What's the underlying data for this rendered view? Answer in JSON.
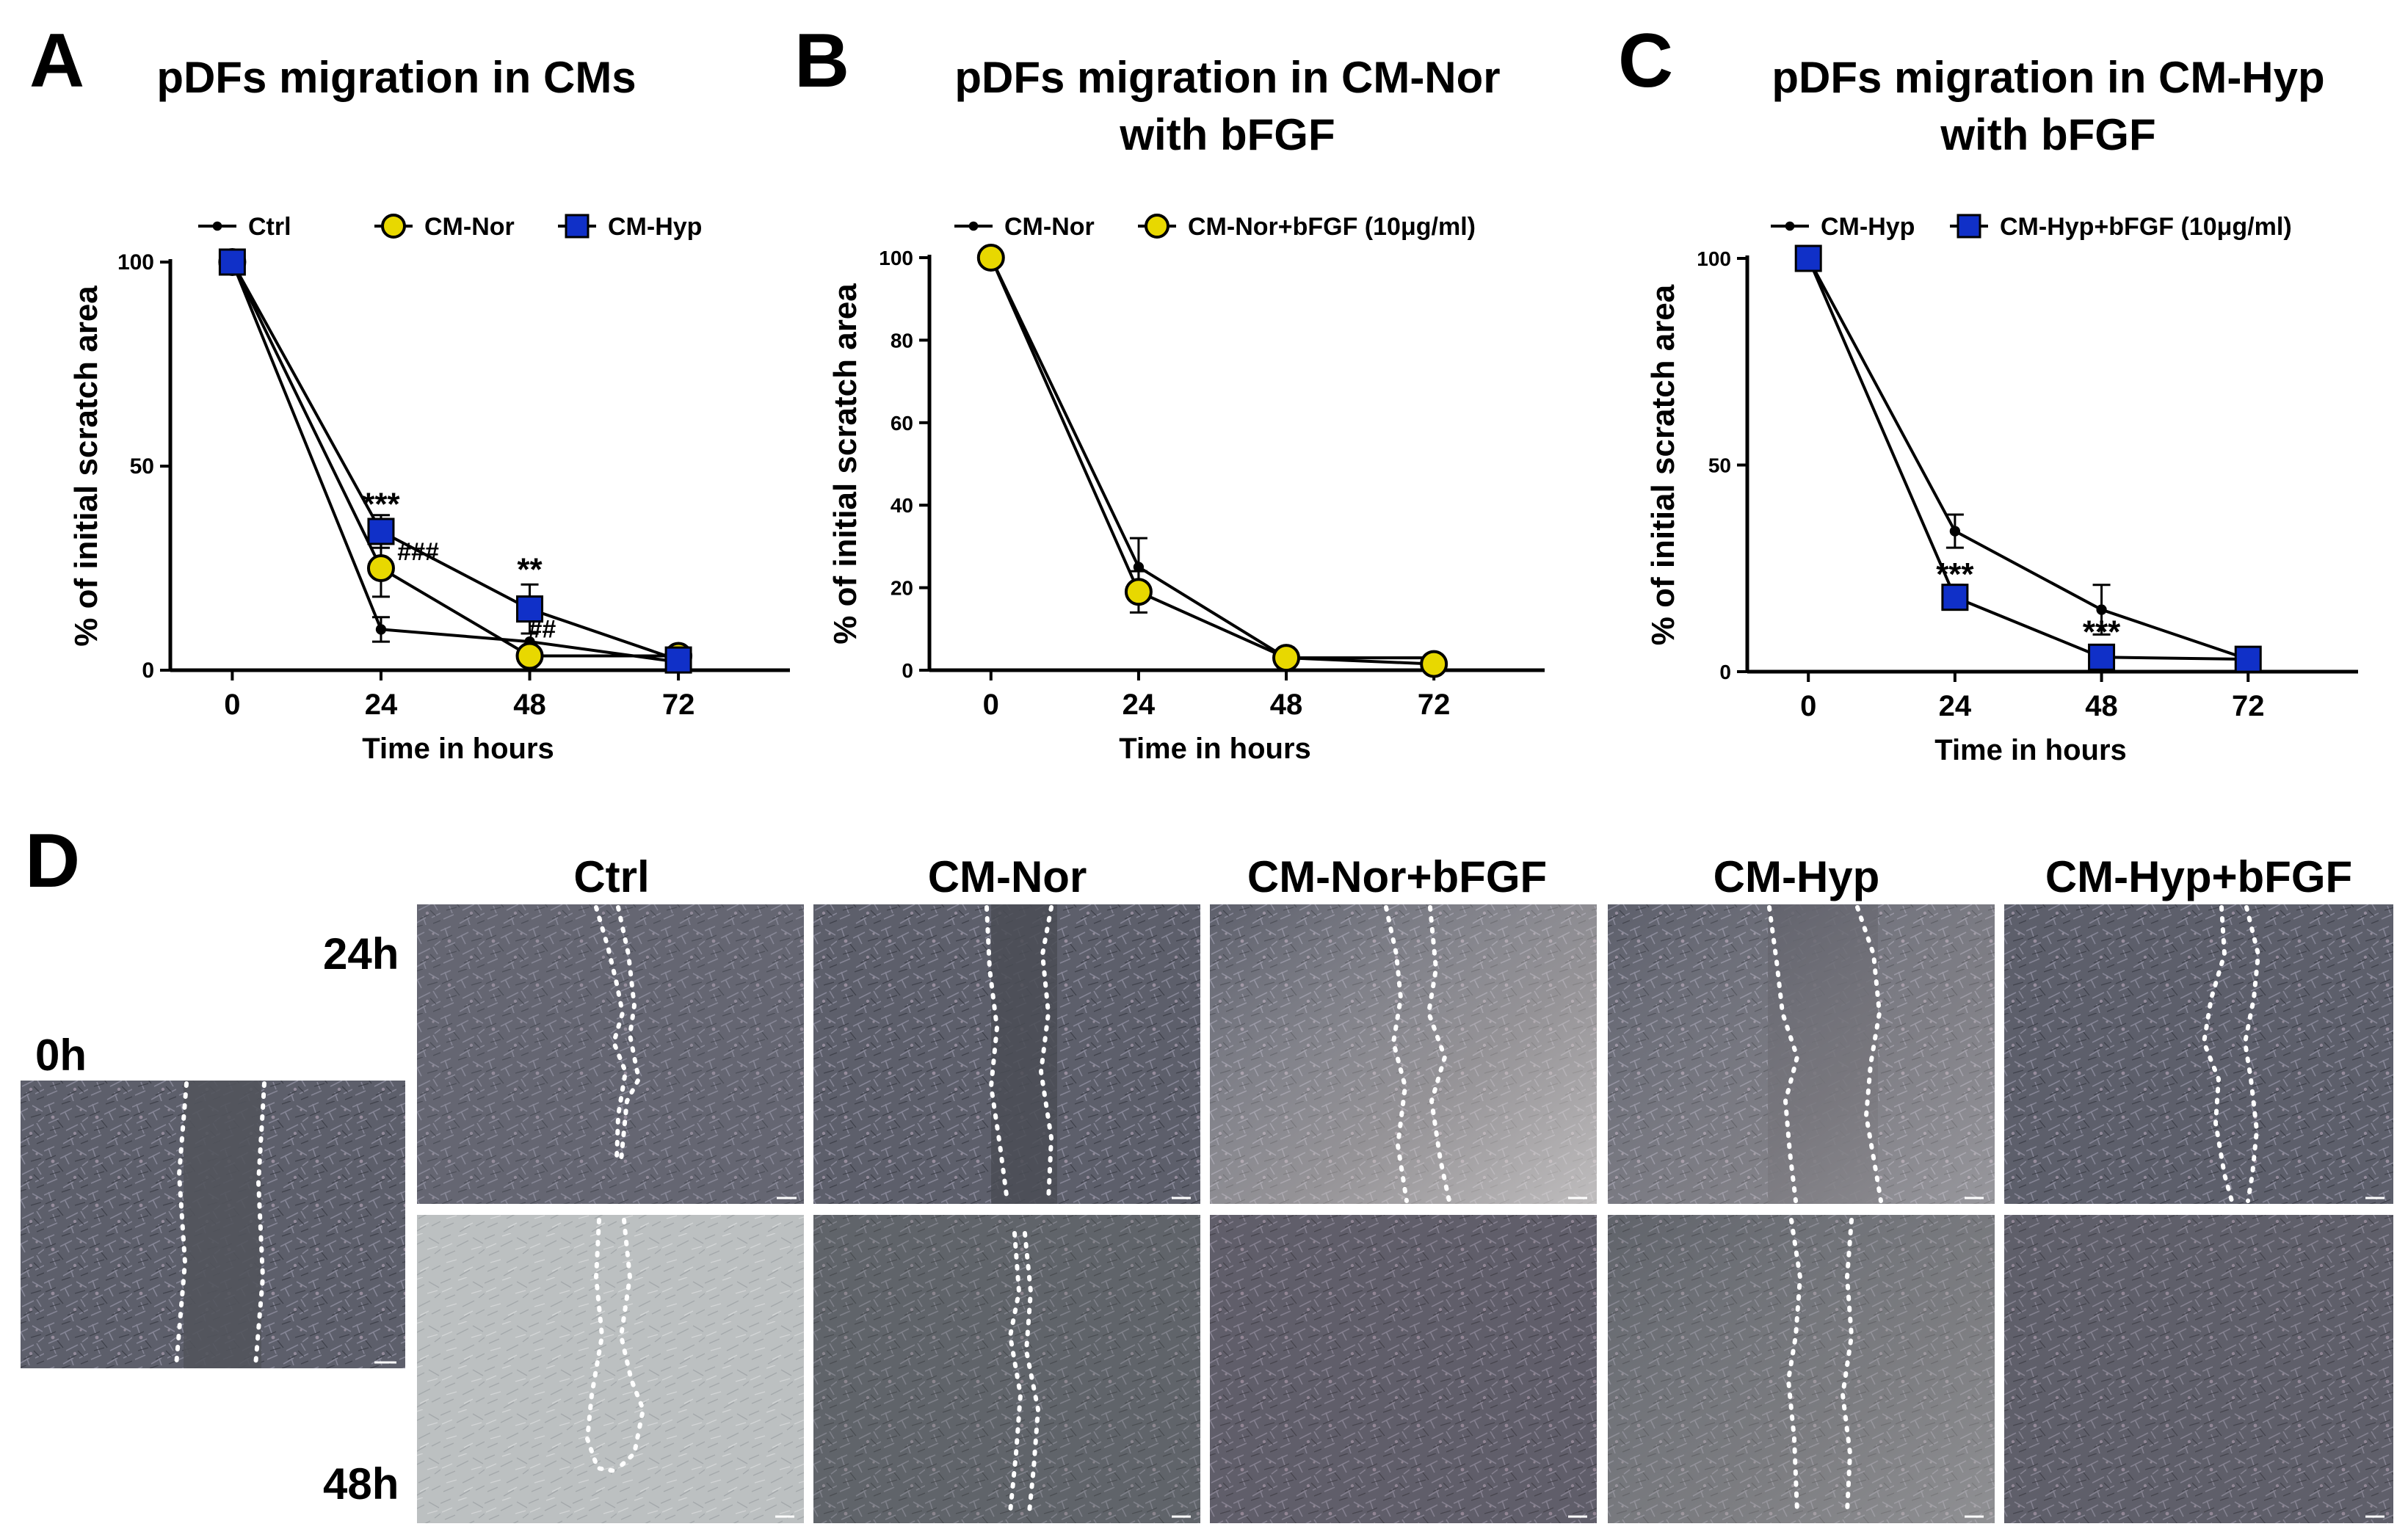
{
  "colors": {
    "ctrl": "#000000",
    "nor": "#e8d800",
    "hyp": "#1030c8",
    "micro_base": "#5a5c68",
    "micro_light": "#b9bdbe"
  },
  "panels": [
    {
      "letter": "A",
      "title": [
        "pDFs migration in CMs"
      ]
    },
    {
      "letter": "B",
      "title": [
        "pDFs migration in CM-Nor",
        "with bFGF"
      ]
    },
    {
      "letter": "C",
      "title": [
        "pDFs migration in CM-Hyp",
        "with bFGF"
      ]
    },
    {
      "letter": "D"
    }
  ],
  "chart_data": [
    {
      "type": "line",
      "title": "pDFs migration in CMs",
      "xlabel": "Time in hours",
      "ylabel": "% of initial scratch area",
      "x": [
        0,
        24,
        48,
        72
      ],
      "xticks": [
        "0",
        "24",
        "48",
        "72"
      ],
      "yticks": [
        "0",
        "50",
        "100"
      ],
      "ytick_values": [
        0,
        50,
        100
      ],
      "xlim": [
        -10,
        90
      ],
      "ylim": [
        0,
        100
      ],
      "legend_position": "top",
      "series": [
        {
          "name": "Ctrl",
          "marker": "dot",
          "color_key": "ctrl",
          "values": [
            100,
            10,
            7,
            2
          ],
          "errors": [
            0,
            3,
            0,
            0
          ]
        },
        {
          "name": "CM-Nor",
          "marker": "circle",
          "color_key": "nor",
          "values": [
            100,
            25,
            3.5,
            3.5
          ],
          "errors": [
            0,
            7,
            1,
            1
          ]
        },
        {
          "name": "CM-Hyp",
          "marker": "square",
          "color_key": "hyp",
          "values": [
            100,
            34,
            15,
            2.5
          ],
          "errors": [
            0,
            4,
            6,
            0
          ]
        }
      ],
      "annotations": [
        {
          "text": "***",
          "x": 24,
          "y": 38
        },
        {
          "text": "###",
          "x": 30,
          "y": 27
        },
        {
          "text": "**",
          "x": 48,
          "y": 22
        },
        {
          "text": "##",
          "x": 50,
          "y": 8
        }
      ]
    },
    {
      "type": "line",
      "title": "pDFs migration in CM-Nor with bFGF",
      "xlabel": "Time in hours",
      "ylabel": "% of initial scratch area",
      "x": [
        0,
        24,
        48,
        72
      ],
      "xticks": [
        "0",
        "24",
        "48",
        "72"
      ],
      "yticks": [
        "0",
        "20",
        "40",
        "60",
        "80",
        "100"
      ],
      "ytick_values": [
        0,
        20,
        40,
        60,
        80,
        100
      ],
      "xlim": [
        -10,
        90
      ],
      "ylim": [
        0,
        100
      ],
      "legend_position": "top",
      "series": [
        {
          "name": "CM-Nor",
          "marker": "dot",
          "color_key": "ctrl",
          "values": [
            100,
            25,
            3,
            3
          ],
          "errors": [
            0,
            7,
            0,
            0
          ]
        },
        {
          "name": "CM-Nor+bFGF (10μg/ml)",
          "marker": "circle",
          "color_key": "nor",
          "values": [
            100,
            19,
            3,
            1.5
          ],
          "errors": [
            0,
            5,
            0,
            0
          ]
        }
      ],
      "annotations": []
    },
    {
      "type": "line",
      "title": "pDFs migration in CM-Hyp with bFGF",
      "xlabel": "Time in hours",
      "ylabel": "% of initial scratch area",
      "x": [
        0,
        24,
        48,
        72
      ],
      "xticks": [
        "0",
        "24",
        "48",
        "72"
      ],
      "yticks": [
        "0",
        "50",
        "100"
      ],
      "ytick_values": [
        0,
        50,
        100
      ],
      "xlim": [
        -10,
        90
      ],
      "ylim": [
        0,
        100
      ],
      "legend_position": "top",
      "series": [
        {
          "name": "CM-Hyp",
          "marker": "dot",
          "color_key": "ctrl",
          "values": [
            100,
            34,
            15,
            3
          ],
          "errors": [
            0,
            4,
            6,
            0
          ]
        },
        {
          "name": "CM-Hyp+bFGF (10μg/ml)",
          "marker": "square",
          "color_key": "hyp",
          "values": [
            100,
            18,
            3.5,
            3
          ],
          "errors": [
            0,
            3,
            0,
            0
          ]
        }
      ],
      "annotations": [
        {
          "text": "***",
          "x": 24,
          "y": 21
        },
        {
          "text": "***",
          "x": 48,
          "y": 7
        }
      ]
    }
  ],
  "micrographs": {
    "columns": [
      "Ctrl",
      "CM-Nor",
      "CM-Nor+bFGF",
      "CM-Hyp",
      "CM-Hyp+bFGF"
    ],
    "rows": [
      "24h",
      "48h"
    ],
    "baseline_label": "0h"
  }
}
